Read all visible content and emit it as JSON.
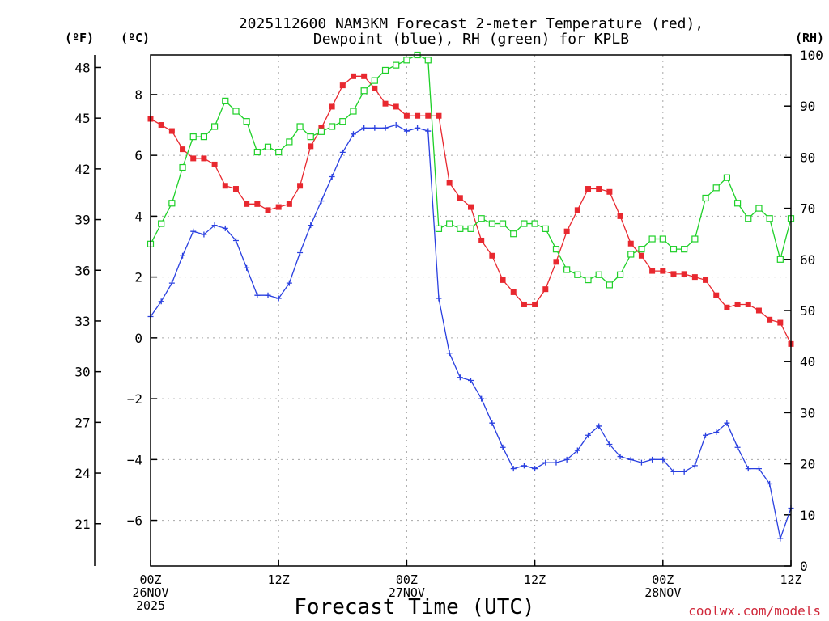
{
  "chart_data": {
    "type": "line",
    "title": "2025112600 NAM3KM Forecast 2-meter Temperature (red), Dewpoint (blue), RH (green) for KPLB",
    "title_lines": [
      "2025112600 NAM3KM Forecast 2-meter Temperature (red),",
      "Dewpoint (blue), RH (green) for KPLB"
    ],
    "xlabel": "Forecast Time (UTC)",
    "unit_labels": {
      "fahrenheit": "(ºF)",
      "celsius": "(ºC)",
      "rh": "(RH)"
    },
    "credit": "coolwx.com/models",
    "x_range_hours": [
      0,
      60
    ],
    "x_ticks": [
      {
        "hour": 0,
        "lines": [
          "00Z",
          "26NOV",
          "2025"
        ]
      },
      {
        "hour": 12,
        "lines": [
          "12Z"
        ]
      },
      {
        "hour": 24,
        "lines": [
          "00Z",
          "27NOV"
        ]
      },
      {
        "hour": 36,
        "lines": [
          "12Z"
        ]
      },
      {
        "hour": 48,
        "lines": [
          "00Z",
          "28NOV"
        ]
      },
      {
        "hour": 60,
        "lines": [
          "12Z"
        ]
      }
    ],
    "celsius_axis": {
      "range": [
        -7.5,
        9.3
      ],
      "ticks": [
        8,
        6,
        4,
        2,
        0,
        -2,
        -4,
        -6
      ],
      "tick_labels": [
        "8",
        "6",
        "4",
        "2",
        "0",
        "−2",
        "−4",
        "−6"
      ]
    },
    "fahrenheit_axis": {
      "ticks": [
        48,
        45,
        42,
        39,
        36,
        33,
        30,
        27,
        24,
        21
      ]
    },
    "rh_axis": {
      "range": [
        0,
        100
      ],
      "ticks": [
        100,
        90,
        80,
        70,
        60,
        50,
        40,
        30,
        20,
        10,
        0
      ]
    },
    "x": [
      0,
      1,
      2,
      3,
      4,
      5,
      6,
      7,
      8,
      9,
      10,
      11,
      12,
      13,
      14,
      15,
      16,
      17,
      18,
      19,
      20,
      21,
      22,
      23,
      24,
      25,
      26,
      27,
      28,
      29,
      30,
      31,
      32,
      33,
      34,
      35,
      36,
      37,
      38,
      39,
      40,
      41,
      42,
      43,
      44,
      45,
      46,
      47,
      48,
      49,
      50,
      51,
      52,
      53,
      54,
      55,
      56,
      57,
      58,
      59,
      60
    ],
    "series": [
      {
        "name": "2-meter Temperature",
        "unit": "°C",
        "color": "#e8282f",
        "marker": "filled-square",
        "values": [
          7.2,
          7.0,
          6.8,
          6.2,
          5.9,
          5.9,
          5.7,
          5.0,
          4.9,
          4.4,
          4.4,
          4.2,
          4.3,
          4.4,
          5.0,
          6.3,
          6.9,
          7.6,
          8.3,
          8.6,
          8.6,
          8.2,
          7.7,
          7.6,
          7.3,
          7.3,
          7.3,
          7.3,
          5.1,
          4.6,
          4.3,
          3.2,
          2.7,
          1.9,
          1.5,
          1.1,
          1.1,
          1.6,
          2.5,
          3.5,
          4.2,
          4.9,
          4.9,
          4.8,
          4.0,
          3.1,
          2.7,
          2.2,
          2.2,
          2.1,
          2.1,
          2.0,
          1.9,
          1.4,
          1.0,
          1.1,
          1.1,
          0.9,
          0.6,
          0.5,
          -0.2
        ]
      },
      {
        "name": "Dewpoint",
        "unit": "°C",
        "color": "#2a40e0",
        "marker": "plus",
        "values": [
          0.7,
          1.2,
          1.8,
          2.7,
          3.5,
          3.4,
          3.7,
          3.6,
          3.2,
          2.3,
          1.4,
          1.4,
          1.3,
          1.8,
          2.8,
          3.7,
          4.5,
          5.3,
          6.1,
          6.7,
          6.9,
          6.9,
          6.9,
          7.0,
          6.8,
          6.9,
          6.8,
          1.3,
          -0.5,
          -1.3,
          -1.4,
          -2.0,
          -2.8,
          -3.6,
          -4.3,
          -4.2,
          -4.3,
          -4.1,
          -4.1,
          -4.0,
          -3.7,
          -3.2,
          -2.9,
          -3.5,
          -3.9,
          -4.0,
          -4.1,
          -4.0,
          -4.0,
          -4.4,
          -4.4,
          -4.2,
          -3.2,
          -3.1,
          -2.8,
          -3.6,
          -4.3,
          -4.3,
          -4.8,
          -6.6,
          -5.6
        ]
      },
      {
        "name": "RH",
        "unit": "%",
        "color": "#1ed028",
        "marker": "open-square",
        "values": [
          63,
          67,
          71,
          78,
          84,
          84,
          86,
          91,
          89,
          87,
          81,
          82,
          81,
          83,
          86,
          84,
          85,
          86,
          87,
          89,
          93,
          95,
          97,
          98,
          99,
          100,
          99,
          66,
          67,
          66,
          66,
          68,
          67,
          67,
          65,
          67,
          67,
          66,
          62,
          58,
          57,
          56,
          57,
          55,
          57,
          61,
          62,
          64,
          64,
          62,
          62,
          64,
          72,
          74,
          76,
          71,
          68,
          70,
          68,
          60,
          68
        ]
      }
    ]
  }
}
